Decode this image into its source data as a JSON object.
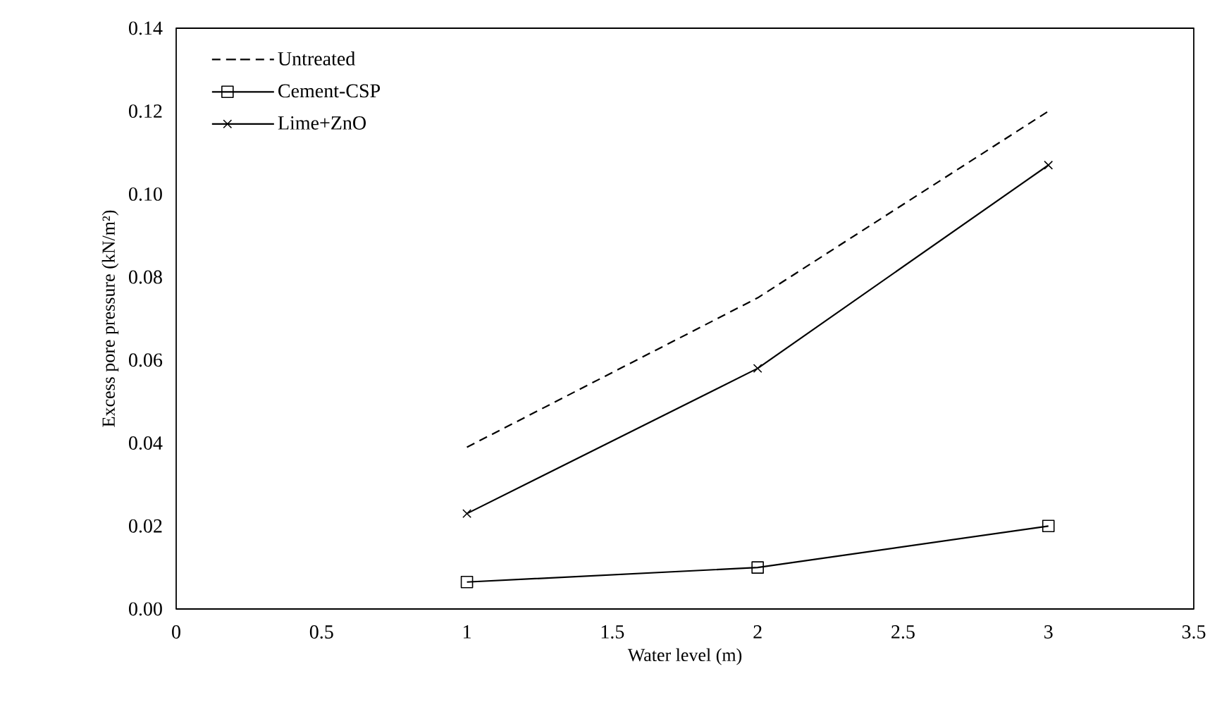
{
  "chart_data": {
    "type": "line",
    "xlabel": "Water level (m)",
    "ylabel": "Excess pore pressure (kN/m²)",
    "xlim": [
      0,
      3.5
    ],
    "xticks": [
      0,
      0.5,
      1,
      1.5,
      2,
      2.5,
      3,
      3.5
    ],
    "ylim": [
      0,
      0.14
    ],
    "yticks": [
      {
        "value": 0,
        "label": "0.00"
      },
      0.02,
      0.04,
      0.06,
      0.08,
      {
        "value": 0.1,
        "label": "0.10"
      },
      0.12,
      0.14
    ],
    "grid": false,
    "legend": "top left",
    "x": [
      1,
      2,
      3
    ],
    "series": [
      {
        "name": "Untreated",
        "color": "#000000",
        "values": [
          0.039,
          0.075,
          0.12
        ],
        "line_style": "dashed",
        "marker": "none"
      },
      {
        "name": "Cement-CSP",
        "color": "#000000",
        "values": [
          0.0065,
          0.01,
          0.02
        ],
        "line_style": "solid",
        "marker": "square"
      },
      {
        "name": "Lime+ZnO",
        "color": "#000000",
        "values": [
          0.023,
          0.058,
          0.107
        ],
        "line_style": "solid",
        "marker": "cross"
      }
    ]
  }
}
